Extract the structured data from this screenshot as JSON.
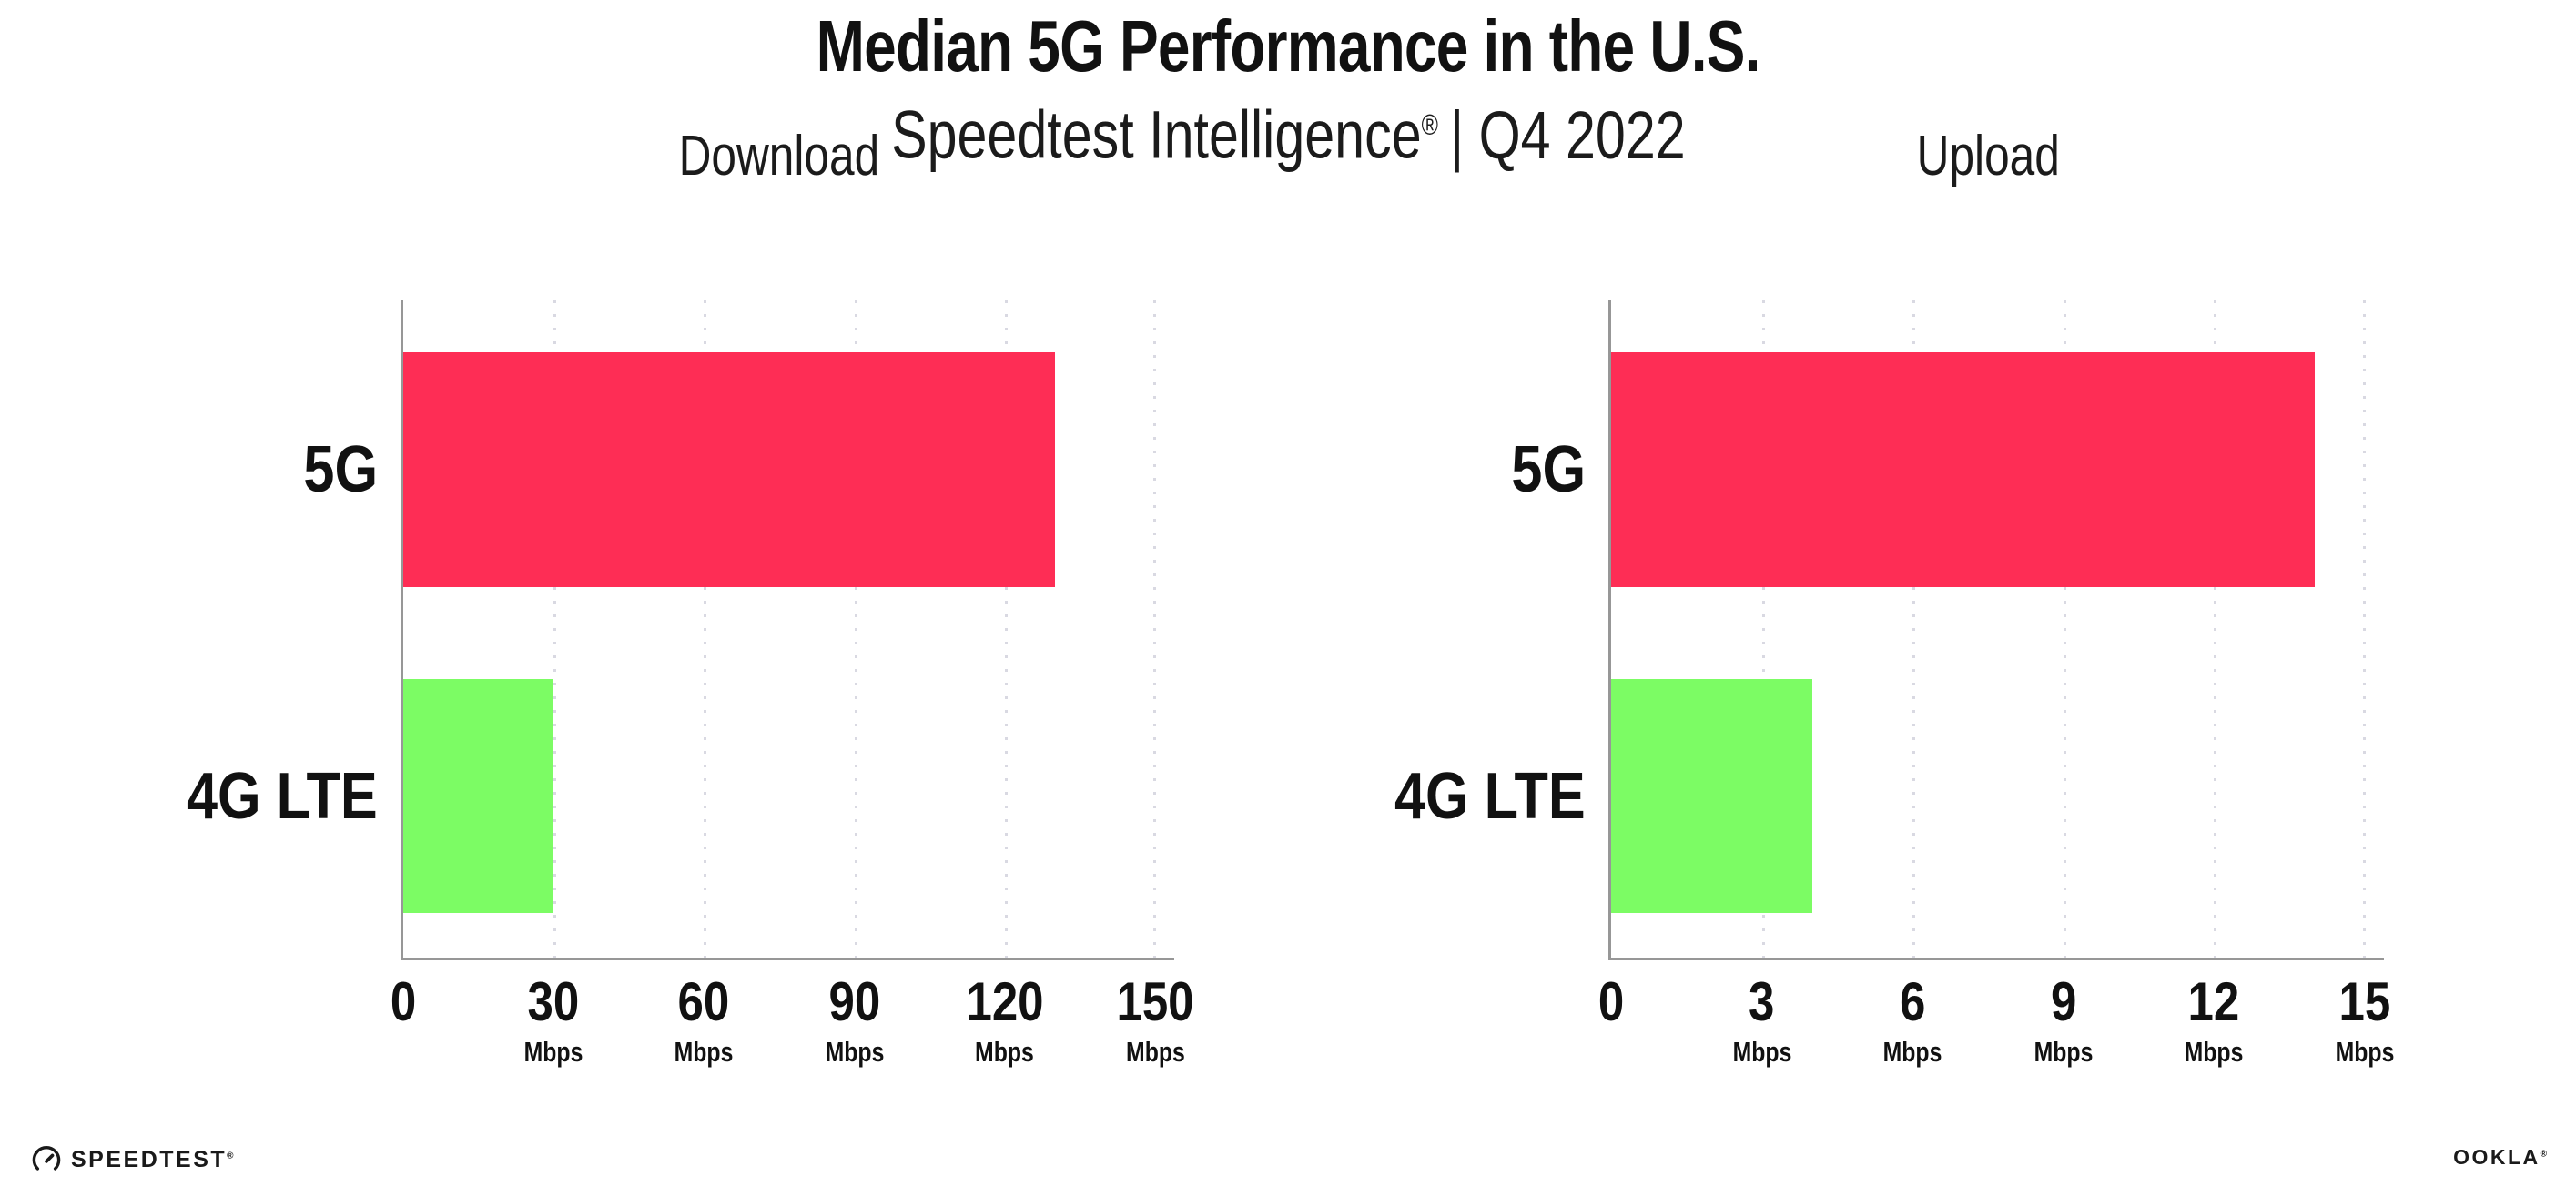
{
  "header": {
    "title": "Median 5G Performance in the U.S.",
    "subtitle_brand": "Speedtest Intelligence",
    "subtitle_reg": "®",
    "subtitle_rest": "| Q4 2022"
  },
  "chart_data": [
    {
      "type": "bar",
      "orientation": "horizontal",
      "title": "Download",
      "categories": [
        "5G",
        "4G LTE"
      ],
      "values": [
        130,
        30
      ],
      "unit": "Mbps",
      "xlim": [
        0,
        150
      ],
      "xticks": [
        0,
        30,
        60,
        90,
        120,
        150
      ],
      "bar_colors": [
        "#FE2D55",
        "#7CFC64"
      ],
      "grid": "vertical-dotted",
      "legend_position": "none"
    },
    {
      "type": "bar",
      "orientation": "horizontal",
      "title": "Upload",
      "categories": [
        "5G",
        "4G LTE"
      ],
      "values": [
        14,
        4
      ],
      "unit": "Mbps",
      "xlim": [
        0,
        15
      ],
      "xticks": [
        0,
        3,
        6,
        9,
        12,
        15
      ],
      "bar_colors": [
        "#FE2D55",
        "#7CFC64"
      ],
      "grid": "vertical-dotted",
      "legend_position": "none"
    }
  ],
  "colors": {
    "bar_5g": "#FE2D55",
    "bar_4g_lte": "#7CFC64",
    "axis": "#979797",
    "gridline": "#D9D9E2",
    "text": "#111111"
  },
  "footer": {
    "speedtest_label": "SPEEDTEST",
    "speedtest_reg": "®",
    "ookla_label": "OOKLA",
    "ookla_reg": "®"
  }
}
